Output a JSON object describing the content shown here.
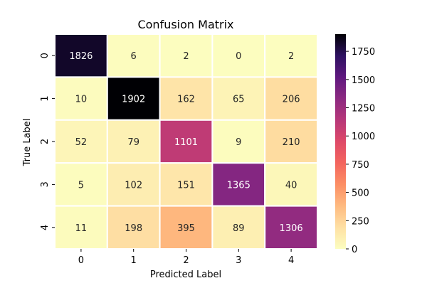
{
  "chart_data": {
    "type": "heatmap",
    "title": "Confusion Matrix",
    "xlabel": "Predicted Label",
    "ylabel": "True Label",
    "x_categories": [
      "0",
      "1",
      "2",
      "3",
      "4"
    ],
    "y_categories": [
      "0",
      "1",
      "2",
      "3",
      "4"
    ],
    "values": [
      [
        1826,
        6,
        2,
        0,
        2
      ],
      [
        10,
        1902,
        162,
        65,
        206
      ],
      [
        52,
        79,
        1101,
        9,
        210
      ],
      [
        5,
        102,
        151,
        1365,
        40
      ],
      [
        11,
        198,
        395,
        89,
        1306
      ]
    ],
    "colormap": "magma_r",
    "colorbar": {
      "range": [
        0,
        1902
      ],
      "ticks": [
        0,
        250,
        500,
        750,
        1000,
        1250,
        1500,
        1750
      ],
      "tick_labels": [
        "0",
        "250",
        "500",
        "750",
        "1000",
        "1250",
        "1500",
        "1750"
      ]
    },
    "grid_color": "#ffffff"
  }
}
